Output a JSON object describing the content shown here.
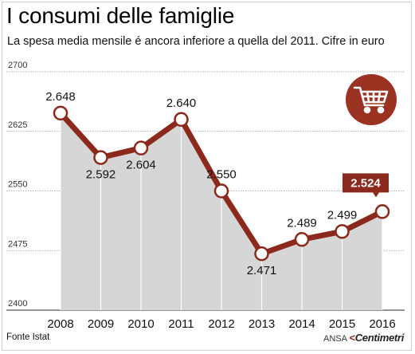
{
  "header": {
    "title": "I consumi delle famiglie",
    "subtitle": "La spesa media mensile é ancora inferiore a quella del 2011. Cifre in euro"
  },
  "footer": {
    "source": "Fonte Istat",
    "credit_prefix": "ANSA",
    "credit_brand": "Centimetri"
  },
  "icon": {
    "name": "shopping-cart-icon"
  },
  "colors": {
    "line": "#8b2a1c",
    "area": "#d6d6d6",
    "highlight_box": "#8b2a1c",
    "icon_circle": "#9b3322",
    "text": "#111111"
  },
  "chart_data": {
    "type": "line",
    "categories": [
      "2008",
      "2009",
      "2010",
      "2011",
      "2012",
      "2013",
      "2014",
      "2015",
      "2016"
    ],
    "values": [
      2648,
      2592,
      2604,
      2640,
      2550,
      2471,
      2489,
      2499,
      2524
    ],
    "data_labels": [
      "2.648",
      "2.592",
      "2.604",
      "2.640",
      "2.550",
      "2.471",
      "2.489",
      "2.499",
      "2.524"
    ],
    "highlight_index": 8,
    "yticks": [
      2400,
      2475,
      2550,
      2625,
      2700
    ],
    "ylim": [
      2400,
      2700
    ],
    "grid": true,
    "area_fill": true,
    "title": "I consumi delle famiglie",
    "xlabel": "",
    "ylabel": ""
  }
}
